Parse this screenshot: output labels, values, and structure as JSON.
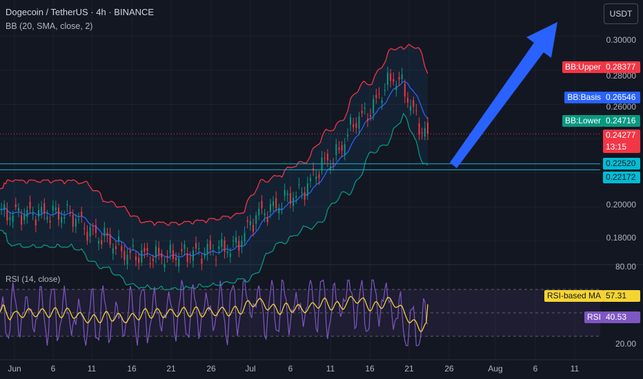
{
  "header": {
    "title": "Dogecoin / TetherUS · 4h · BINANCE",
    "bb_indicator": "BB (20, SMA, close, 2)",
    "currency_button": "USDT"
  },
  "rsi_indicator": "RSI (14, close)",
  "price_axis": [
    "0.30000",
    "0.28000",
    "0.26000",
    "0.20000",
    "0.18000"
  ],
  "rsi_axis": [
    "80.00",
    "20.00"
  ],
  "time_axis": [
    "Jun",
    "6",
    "11",
    "16",
    "21",
    "26",
    "Jul",
    "6",
    "11",
    "16",
    "21",
    "26",
    "Aug",
    "6",
    "11"
  ],
  "price_tags": {
    "bb_upper": {
      "label": "BB:Upper",
      "value": "0.28377",
      "color": "#f23645"
    },
    "bb_basis": {
      "label": "BB:Basis",
      "value": "0.26546",
      "color": "#2962ff"
    },
    "bb_lower": {
      "label": "BB:Lower",
      "value": "0.24716",
      "color": "#089981"
    },
    "last_price": {
      "value": "0.24277",
      "countdown": "13:15",
      "color": "#f23645"
    },
    "level_1": {
      "value": "0.22520",
      "color": "#00bcd4"
    },
    "level_2": {
      "value": "0.22172",
      "color": "#00bcd4"
    }
  },
  "rsi_tags": {
    "rsi_ma": {
      "label": "RSI-based MA",
      "value": "57.31",
      "color": "#f5d432"
    },
    "rsi": {
      "label": "RSI",
      "value": "40.53",
      "color": "#7e57c2"
    }
  },
  "chart_data": {
    "type": "line",
    "title": "Dogecoin / TetherUS · 4h · BINANCE",
    "ylim": [
      0.167,
      0.305
    ],
    "horizontal_levels": [
      0.2252,
      0.22172
    ],
    "approx_close_path": {
      "x": [
        "Jun 1",
        "Jun 6",
        "Jun 11",
        "Jun 16",
        "Jun 21",
        "Jun 26",
        "Jul 1",
        "Jul 6",
        "Jul 11",
        "Jul 14",
        "Jul 17",
        "Jul 19",
        "Jul 21",
        "Jul 23"
      ],
      "y": [
        0.196,
        0.196,
        0.196,
        0.183,
        0.172,
        0.171,
        0.173,
        0.176,
        0.197,
        0.207,
        0.227,
        0.253,
        0.275,
        0.2428
      ]
    },
    "bb_last": {
      "upper": 0.28377,
      "basis": 0.26546,
      "lower": 0.24716
    },
    "rsi_last": {
      "rsi": 40.53,
      "ma": 57.31
    },
    "grid": true
  }
}
